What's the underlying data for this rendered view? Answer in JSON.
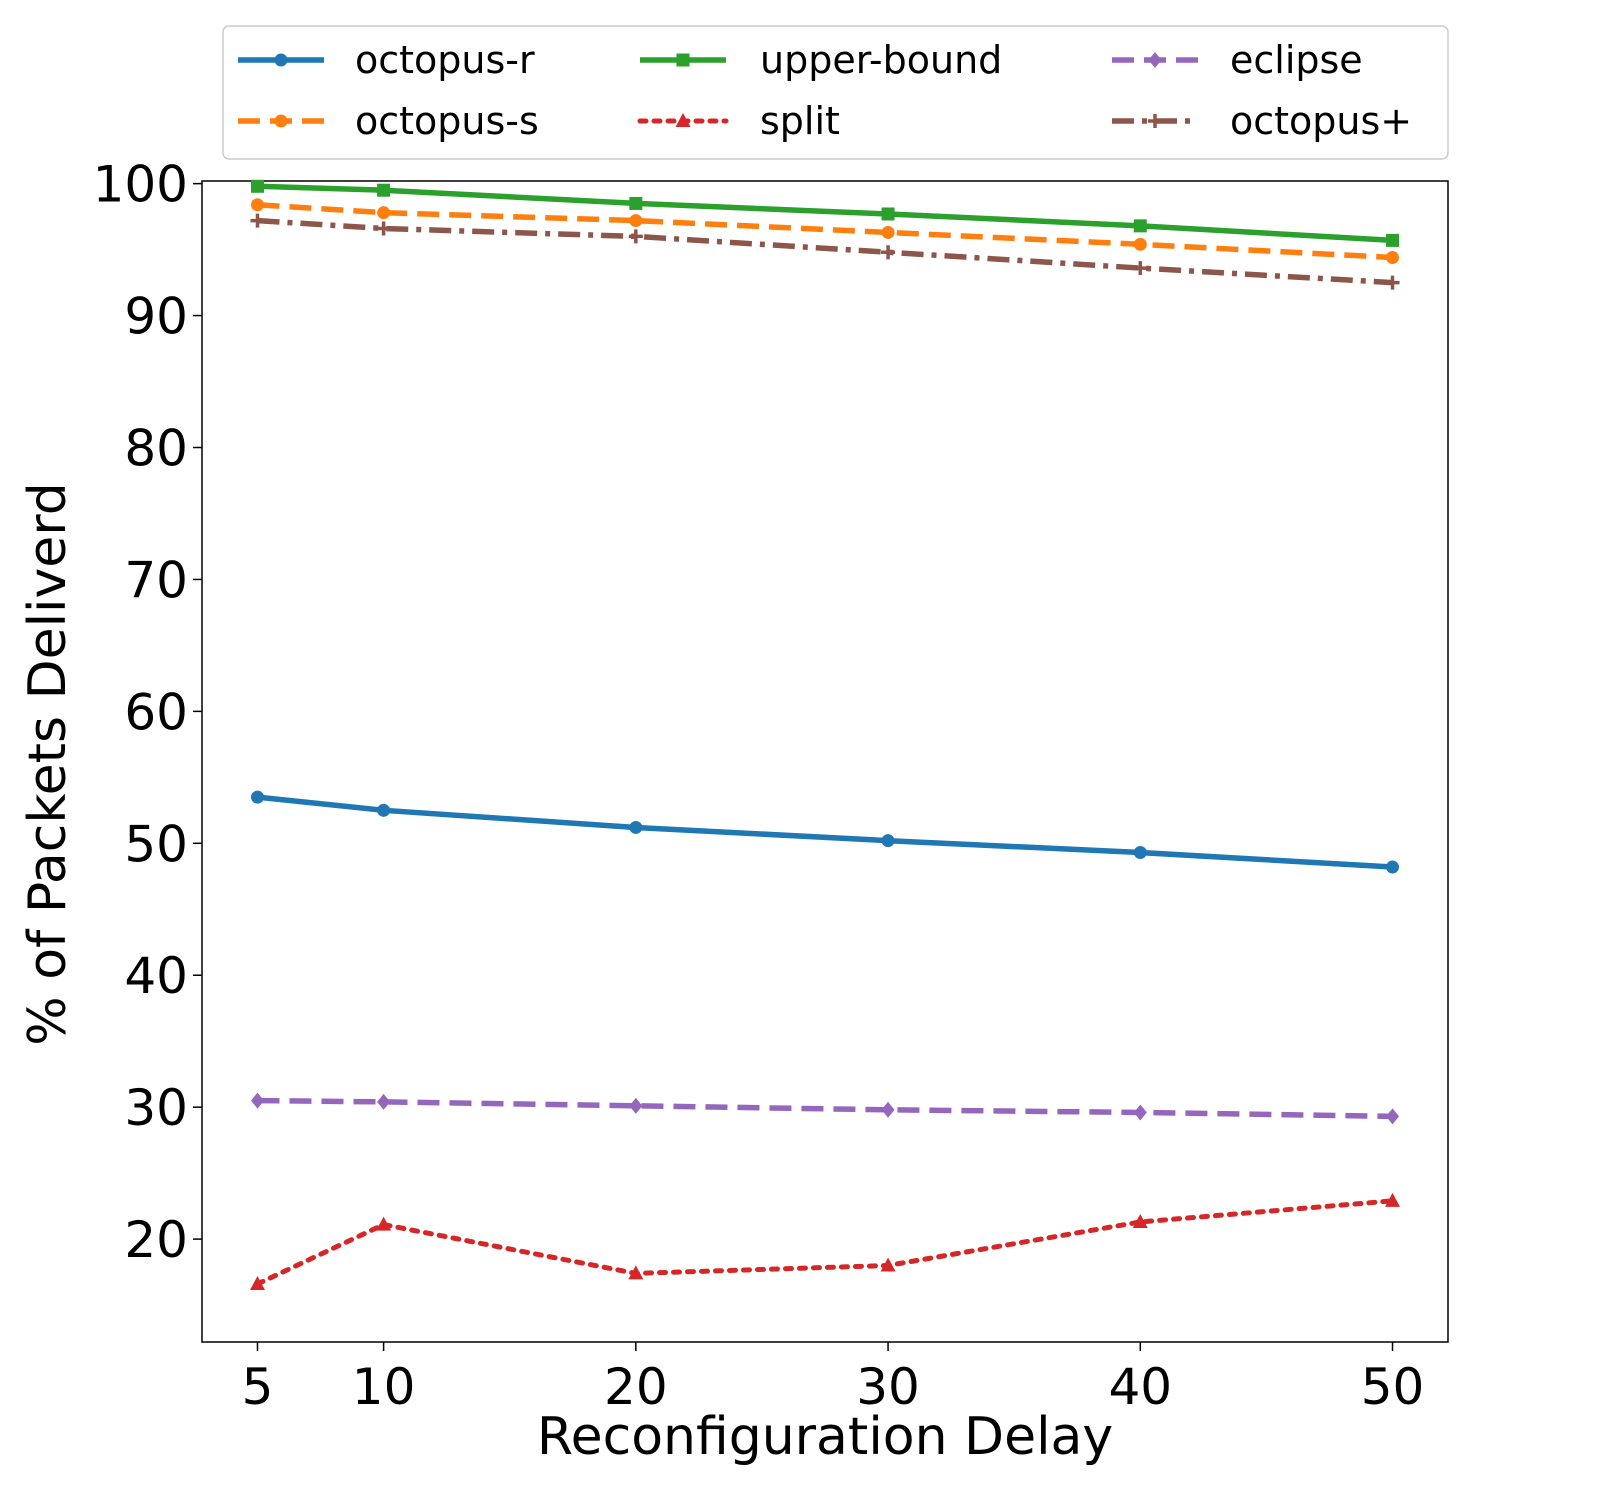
{
  "chart_data": {
    "type": "line",
    "xlabel": "Reconfiguration Delay",
    "ylabel": "% of Packets Deliverd",
    "x": [
      5,
      10,
      20,
      30,
      40,
      50
    ],
    "xticks": [
      "5",
      "10",
      "20",
      "30",
      "40",
      "50"
    ],
    "yticks": [
      "20",
      "30",
      "40",
      "50",
      "60",
      "70",
      "80",
      "90",
      "100"
    ],
    "xlim": [
      2.8,
      52.2
    ],
    "ylim": [
      12.2,
      100.2
    ],
    "grid": false,
    "legend_position": "top",
    "series": [
      {
        "name": "octopus-r",
        "color": "#1f77b4",
        "dash": "solid",
        "marker": "circle",
        "values": [
          53.5,
          52.5,
          51.2,
          50.2,
          49.3,
          48.2
        ]
      },
      {
        "name": "octopus-s",
        "color": "#ff7f0e",
        "dash": "dashed",
        "marker": "circle",
        "values": [
          98.4,
          97.8,
          97.2,
          96.3,
          95.4,
          94.4
        ]
      },
      {
        "name": "upper-bound",
        "color": "#2ca02c",
        "dash": "solid",
        "marker": "square",
        "values": [
          99.8,
          99.5,
          98.5,
          97.7,
          96.8,
          95.7
        ]
      },
      {
        "name": "split",
        "color": "#d62728",
        "dash": "dotted",
        "marker": "triangle",
        "values": [
          16.6,
          21.1,
          17.4,
          18.0,
          21.3,
          22.9
        ]
      },
      {
        "name": "eclipse",
        "color": "#9467bd",
        "dash": "dashed",
        "marker": "diamond",
        "values": [
          30.5,
          30.4,
          30.1,
          29.8,
          29.6,
          29.3
        ]
      },
      {
        "name": "octopus+",
        "color": "#8c564b",
        "dash": "dashdot",
        "marker": "plus",
        "values": [
          97.2,
          96.6,
          96.0,
          94.8,
          93.6,
          92.5
        ]
      }
    ]
  }
}
